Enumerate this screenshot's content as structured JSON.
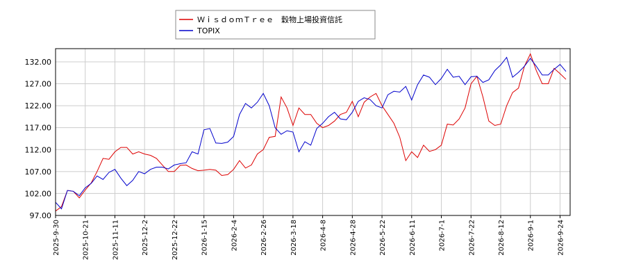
{
  "chart_data": {
    "type": "line",
    "legend_position": "top-center",
    "grid": true,
    "ylim": [
      97,
      135
    ],
    "yticks": [
      {
        "value": 97,
        "label": "97.00"
      },
      {
        "value": 102,
        "label": "102.00"
      },
      {
        "value": 107,
        "label": "107.00"
      },
      {
        "value": 112,
        "label": "112.00"
      },
      {
        "value": 117,
        "label": "117.00"
      },
      {
        "value": 122,
        "label": "122.00"
      },
      {
        "value": 127,
        "label": "127.00"
      },
      {
        "value": 132,
        "label": "132.00"
      }
    ],
    "categories": [
      "2025-9-30",
      null,
      null,
      null,
      null,
      "2025-10-21",
      null,
      null,
      null,
      null,
      "2025-11-11",
      null,
      null,
      null,
      null,
      "2025-12-2",
      null,
      null,
      null,
      null,
      "2025-12-22",
      null,
      null,
      null,
      null,
      "2026-1-15",
      null,
      null,
      null,
      null,
      "2026-2-4",
      null,
      null,
      null,
      null,
      "2026-2-26",
      null,
      null,
      null,
      null,
      "2026-3-18",
      null,
      null,
      null,
      null,
      "2026-4-8",
      null,
      null,
      null,
      null,
      "2026-4-28",
      null,
      null,
      null,
      null,
      "2026-5-22",
      null,
      null,
      null,
      null,
      "2026-6-11",
      null,
      null,
      null,
      null,
      "2026-7-1",
      null,
      null,
      null,
      null,
      "2026-7-22",
      null,
      null,
      null,
      null,
      "2026-8-12",
      null,
      null,
      null,
      null,
      "2026-9-1",
      null,
      null,
      null,
      null,
      "2026-9-24",
      null
    ],
    "series": [
      {
        "name": "ＷｉｓｄｏｍＴｒｅｅ　穀物上場投資信託",
        "color": "#dd0000",
        "values": [
          98,
          99,
          102.7,
          102.5,
          101,
          102.8,
          104.4,
          107,
          110,
          109.8,
          111.5,
          112.5,
          112.5,
          111,
          111.5,
          111,
          110.7,
          110,
          108.5,
          107,
          107,
          108.4,
          108.5,
          107.7,
          107.2,
          107.3,
          107.5,
          107.3,
          106.1,
          106.3,
          107.5,
          109.5,
          107.8,
          108.5,
          111,
          112,
          114.8,
          115,
          124,
          121.5,
          117.5,
          121.5,
          120,
          120,
          118,
          117,
          117.5,
          118.5,
          120,
          120.5,
          123,
          119.5,
          122.8,
          124,
          124.8,
          122,
          120,
          118,
          114.8,
          109.5,
          111.5,
          110.2,
          113,
          111.6,
          112,
          113,
          117.8,
          117.6,
          119,
          121.5,
          127,
          128.7,
          124,
          118.5,
          117.5,
          117.8,
          122,
          125,
          126,
          131,
          133.8,
          130,
          127,
          127,
          130.5,
          129.3,
          128
        ]
      },
      {
        "name": "TOPIX",
        "color": "#0000cc",
        "values": [
          100,
          98.5,
          102.7,
          102.5,
          101.5,
          103.3,
          104.3,
          106,
          105.2,
          106.8,
          107.5,
          105.5,
          103.8,
          105,
          107,
          106.5,
          107.5,
          108,
          108,
          107.6,
          108.5,
          108.8,
          109,
          111.5,
          111,
          116.5,
          116.8,
          113.5,
          113.4,
          113.7,
          115,
          120,
          122.5,
          121.5,
          122.8,
          124.8,
          122,
          117,
          115.5,
          116.3,
          116,
          111.5,
          113.8,
          113,
          116.8,
          118,
          119.5,
          120.5,
          119,
          118.8,
          120.5,
          123,
          123.8,
          123.4,
          122,
          121.5,
          124.5,
          125.3,
          125.1,
          126.4,
          123.3,
          126.8,
          129,
          128.5,
          126.8,
          128.2,
          130.3,
          128.5,
          128.7,
          126.8,
          128.6,
          128.7,
          127.3,
          127.9,
          130,
          131.3,
          133,
          128.5,
          129.6,
          131,
          132.8,
          131,
          129,
          129,
          130.3,
          131.4,
          129.8
        ]
      }
    ]
  }
}
